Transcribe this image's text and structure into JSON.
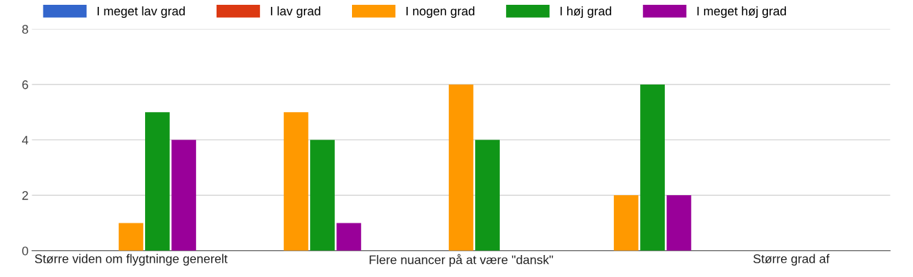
{
  "chart_data": {
    "type": "bar",
    "categories": [
      "Større viden om flygtninge generelt",
      null,
      "Flere nuancer på at være \"dansk\"",
      null,
      "Større grad af"
    ],
    "series": [
      {
        "name": "I meget lav grad",
        "color": "#3366cc",
        "values": [
          0,
          0,
          0,
          0,
          null
        ]
      },
      {
        "name": "I lav grad",
        "color": "#dc3912",
        "values": [
          0,
          0,
          0,
          0,
          null
        ]
      },
      {
        "name": "I nogen grad",
        "color": "#ff9900",
        "values": [
          1,
          5,
          6,
          2,
          null
        ]
      },
      {
        "name": "I høj grad",
        "color": "#109618",
        "values": [
          5,
          4,
          4,
          6,
          null
        ]
      },
      {
        "name": "I meget høj grad",
        "color": "#990099",
        "values": [
          4,
          1,
          0,
          2,
          null
        ]
      }
    ],
    "ylim": [
      0,
      8
    ],
    "yticks": [
      0,
      2,
      4,
      6,
      8
    ],
    "grid": "y",
    "legend": "top left"
  }
}
